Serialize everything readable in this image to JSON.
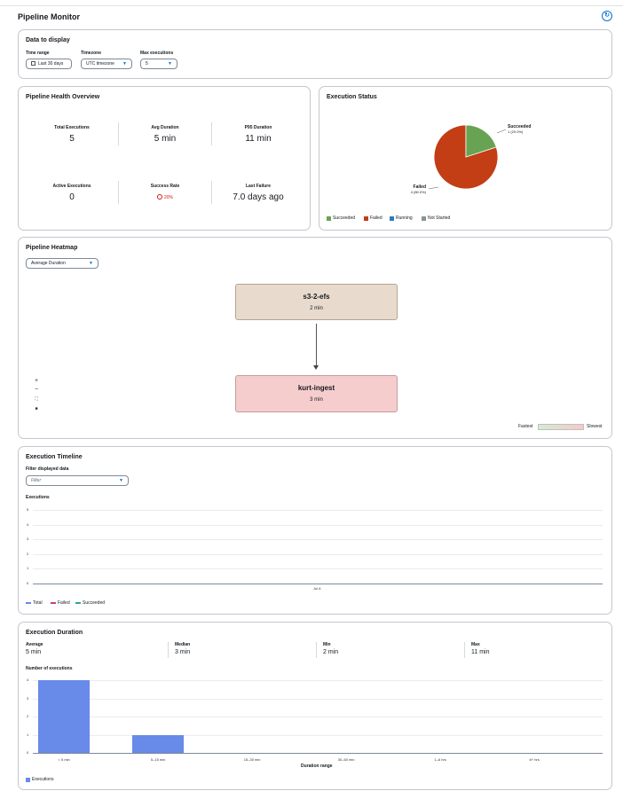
{
  "app": {
    "title": "Pipeline Monitor",
    "refresh_icon": "refresh-icon"
  },
  "data_to_display": {
    "title": "Data to display",
    "time_range": {
      "label": "Time range",
      "value": "Last 30 days"
    },
    "timezone": {
      "label": "Timezone",
      "value": "UTC timezone"
    },
    "max_executions": {
      "label": "Max executions",
      "value": "5"
    }
  },
  "health": {
    "title": "Pipeline Health Overview",
    "stats": [
      {
        "label": "Total Executions",
        "value": "5"
      },
      {
        "label": "Avg Duration",
        "value": "5 min"
      },
      {
        "label": "P95 Duration",
        "value": "11 min"
      },
      {
        "label": "Active Executions",
        "value": "0"
      },
      {
        "label": "Success Rate",
        "value": "20%"
      },
      {
        "label": "Last Failure",
        "value": "7.0 days ago"
      }
    ]
  },
  "execution_status": {
    "title": "Execution Status",
    "succeeded_label": "Succeeded",
    "succeeded_value": "1 (20.0%)",
    "failed_label": "Failed",
    "failed_value": "4 (80.0%)",
    "legend": [
      "Succeeded",
      "Failed",
      "Running",
      "Not Started"
    ]
  },
  "heatmap": {
    "title": "Pipeline Heatmap",
    "metric": "Average Duration",
    "nodes": [
      {
        "name": "s3-2-efs",
        "duration": "2 min"
      },
      {
        "name": "kurt-ingest",
        "duration": "3 min"
      }
    ],
    "zoom_controls": [
      "+",
      "−",
      "⛶",
      "■"
    ],
    "scale_low": "Fastest",
    "scale_high": "Slowest"
  },
  "timeline": {
    "title": "Execution Timeline",
    "filter_label": "Filter displayed data",
    "filter_placeholder": "Filter",
    "y_title": "Executions",
    "y_ticks": [
      "5",
      "4",
      "3",
      "2",
      "1",
      "0"
    ],
    "x_tick": "Jul 6",
    "legend": [
      "Total",
      "Failed",
      "Succeeded"
    ]
  },
  "duration": {
    "title": "Execution Duration",
    "stats": [
      {
        "label": "Average",
        "value": "5 min"
      },
      {
        "label": "Median",
        "value": "3 min"
      },
      {
        "label": "Min",
        "value": "2 min"
      },
      {
        "label": "Max",
        "value": "11 min"
      }
    ],
    "y_title": "Number of executions",
    "y_ticks": [
      "4",
      "3",
      "2",
      "1",
      "0"
    ],
    "x_title": "Duration range",
    "legend": "Executions"
  },
  "colors": {
    "accent": "#0972d3",
    "succeeded": "#67a353",
    "failed": "#c33d15",
    "running": "#2e7bb8",
    "not_started": "#879596",
    "bar": "#688ae8"
  },
  "chart_data": [
    {
      "type": "pie",
      "title": "Execution Status",
      "categories": [
        "Succeeded",
        "Failed"
      ],
      "values": [
        1,
        4
      ]
    },
    {
      "type": "bar",
      "title": "Execution Duration",
      "xlabel": "Duration range",
      "ylabel": "Number of executions",
      "categories": [
        "< 5 min",
        "5–15 min",
        "15–30 min",
        "30–60 min",
        "1–6 hrs",
        "6+ hrs"
      ],
      "values": [
        4,
        1,
        0,
        0,
        0,
        0
      ],
      "ylim": [
        0,
        4
      ]
    }
  ]
}
